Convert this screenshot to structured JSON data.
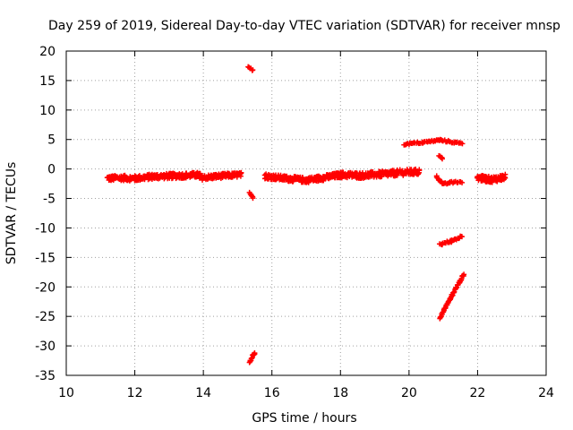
{
  "chart_data": {
    "type": "scatter",
    "title": "Day 259 of 2019, Sidereal Day-to-day VTEC variation (SDTVAR) for receiver mnsp",
    "xlabel": "GPS time / hours",
    "ylabel": "SDTVAR / TECUs",
    "xlim": [
      10,
      24
    ],
    "ylim": [
      -35,
      20
    ],
    "xticks": [
      10,
      12,
      14,
      16,
      18,
      20,
      22,
      24
    ],
    "yticks": [
      20,
      15,
      10,
      5,
      0,
      -5,
      -10,
      -15,
      -20,
      -25,
      -30,
      -35
    ],
    "grid": true,
    "marker": "plus",
    "color": "#ff0000",
    "segments": [
      {
        "x": [
          11.2,
          11.6,
          12.0,
          12.5,
          13.0,
          13.5,
          13.9
        ],
        "y": [
          -1.6,
          -1.5,
          -1.6,
          -1.3,
          -1.2,
          -1.1,
          -1.0
        ],
        "spread": 0.9
      },
      {
        "x": [
          13.9,
          14.3,
          14.7,
          15.1
        ],
        "y": [
          -1.5,
          -1.3,
          -1.1,
          -1.0
        ],
        "spread": 0.8
      },
      {
        "x": [
          15.3,
          15.45
        ],
        "y": [
          17.2,
          16.8
        ],
        "spread": 0.3
      },
      {
        "x": [
          15.35,
          15.45
        ],
        "y": [
          -4.0,
          -4.8
        ],
        "spread": 0.3
      },
      {
        "x": [
          15.35,
          15.5
        ],
        "y": [
          -32.8,
          -31.0
        ],
        "spread": 0.5
      },
      {
        "x": [
          15.8,
          16.4,
          17.0,
          17.5,
          18.0
        ],
        "y": [
          -1.2,
          -1.6,
          -1.9,
          -1.5,
          -1.0
        ],
        "spread": 0.9
      },
      {
        "x": [
          18.0,
          18.6,
          19.2,
          19.8,
          20.3
        ],
        "y": [
          -1.0,
          -1.1,
          -0.9,
          -0.6,
          -0.5
        ],
        "spread": 1.0
      },
      {
        "x": [
          19.85,
          20.4,
          20.9,
          21.55
        ],
        "y": [
          4.2,
          4.5,
          4.9,
          4.3
        ],
        "spread": 0.3
      },
      {
        "x": [
          20.88,
          20.98
        ],
        "y": [
          2.3,
          1.8
        ],
        "spread": 0.2
      },
      {
        "x": [
          20.8,
          21.0,
          21.2,
          21.55
        ],
        "y": [
          -1.3,
          -2.6,
          -2.3,
          -2.2
        ],
        "spread": 0.3
      },
      {
        "x": [
          20.9,
          21.2,
          21.55
        ],
        "y": [
          -12.8,
          -12.3,
          -11.4
        ],
        "spread": 0.4
      },
      {
        "x": [
          20.9,
          21.2,
          21.6
        ],
        "y": [
          -25.2,
          -22.0,
          -17.8
        ],
        "spread": 0.4
      },
      {
        "x": [
          22.0,
          22.4,
          22.8
        ],
        "y": [
          -1.5,
          -1.8,
          -1.4
        ],
        "spread": 1.0
      }
    ]
  }
}
